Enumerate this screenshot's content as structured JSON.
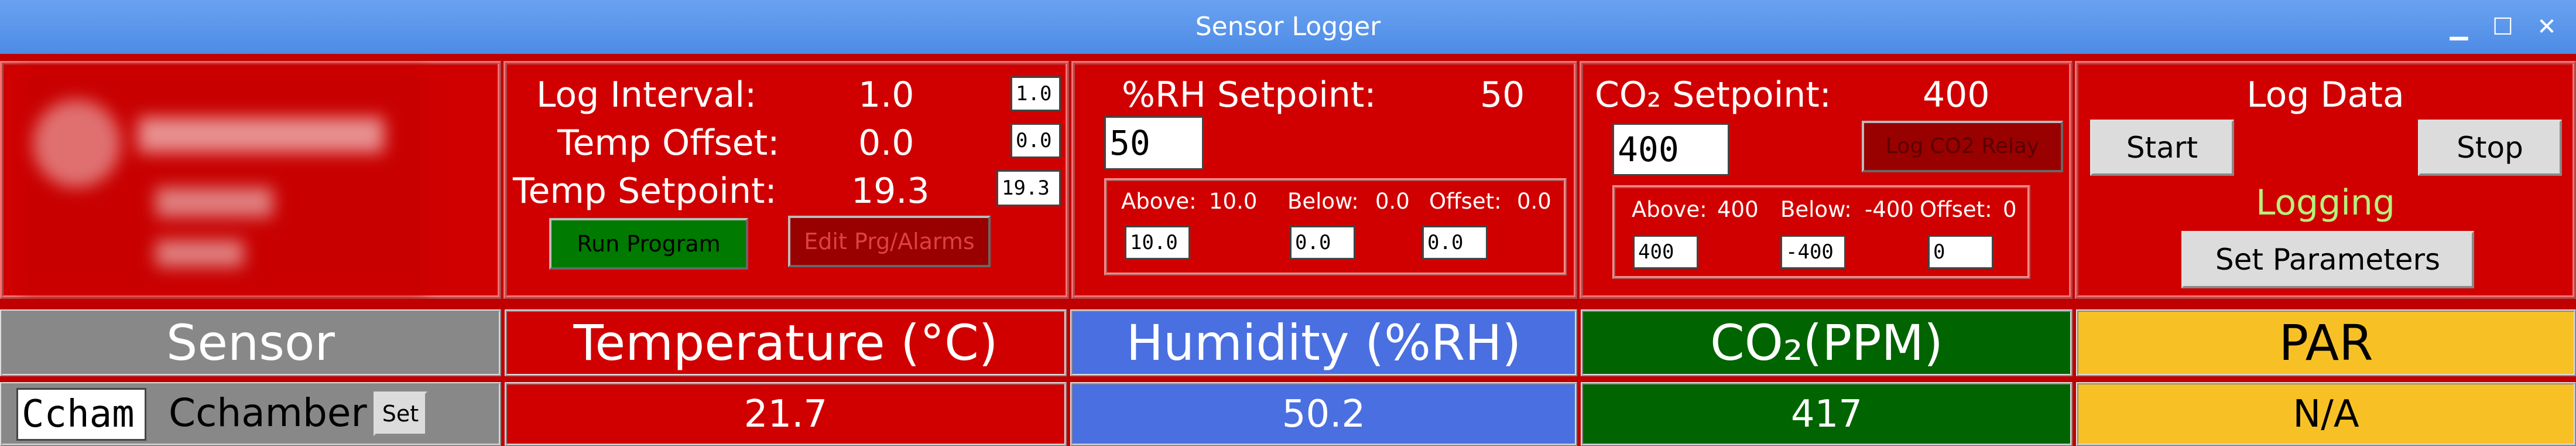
{
  "window": {
    "title": "Sensor Logger",
    "minimize_glyph": "▁",
    "maximize_glyph": "☐",
    "close_glyph": "✕"
  },
  "log_settings": {
    "interval_label": "Log Interval:",
    "interval_value": "1.0",
    "interval_entry": "1.0",
    "temp_offset_label": "Temp Offset:",
    "temp_offset_value": "0.0",
    "temp_offset_entry": "0.0",
    "temp_setpoint_label": "Temp Setpoint:",
    "temp_setpoint_value": "19.3",
    "temp_setpoint_entry": "19.3",
    "run_program_label": "Run Program",
    "edit_program_label": "Edit Prg/Alarms"
  },
  "rh": {
    "setpoint_label": "%RH Setpoint:",
    "setpoint_value": "50",
    "setpoint_entry": "50",
    "above_label": "Above:",
    "above_value": "10.0",
    "below_label": "Below:",
    "below_value": "0.0",
    "offset_label": "Offset:",
    "offset_value": "0.0",
    "above_entry": "10.0",
    "below_entry": "0.0",
    "offset_entry": "0.0"
  },
  "co2": {
    "setpoint_label": "CO₂ Setpoint:",
    "setpoint_value": "400",
    "setpoint_entry": "400",
    "log_relay_label": "Log CO2 Relay",
    "above_label": "Above:",
    "above_value": "400",
    "below_label": "Below:",
    "below_value": "-400",
    "offset_label": "Offset:",
    "offset_value": "0",
    "above_entry": "400",
    "below_entry": "-400",
    "offset_entry": "0"
  },
  "log_data": {
    "title": "Log Data",
    "start_label": "Start",
    "stop_label": "Stop",
    "status": "Logging",
    "set_parameters_label": "Set Parameters"
  },
  "table": {
    "sensor_header": "Sensor",
    "temperature_header": "Temperature (°C)",
    "humidity_header": "Humidity (%RH)",
    "co2_header": "CO₂(PPM)",
    "par_header": "PAR",
    "sensor_entry": "Ccham",
    "sensor_name": "Cchamber",
    "set_label": "Set",
    "temperature_value": "21.7",
    "humidity_value": "50.2",
    "co2_value": "417",
    "par_value": "N/A"
  },
  "colors": {
    "panel_red": "#d00000",
    "sensor_grey": "#888888",
    "humidity_blue": "#4a6fe0",
    "co2_green": "#006400",
    "par_yellow": "#f7c126",
    "run_green": "#007a00",
    "dark_red_button": "#990000",
    "status_green": "#b8f07a",
    "titlebar_blue": "#5a95ea"
  }
}
